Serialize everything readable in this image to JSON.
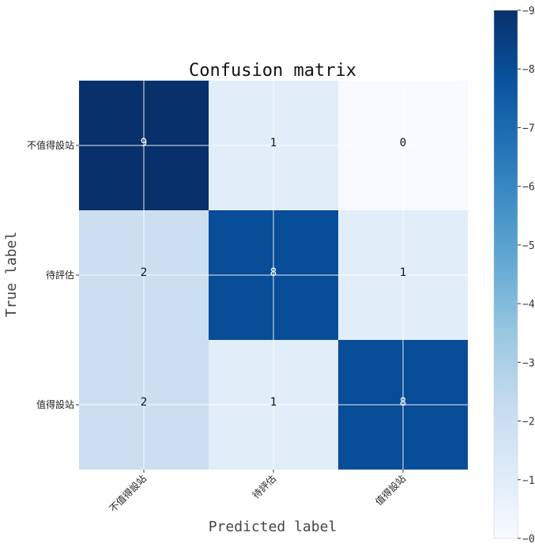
{
  "chart_data": {
    "type": "heatmap",
    "title": "Confusion matrix",
    "xlabel": "Predicted label",
    "ylabel": "True label",
    "x_categories": [
      "不值得設站",
      "待評估",
      "值得設站"
    ],
    "y_categories": [
      "不值得設站",
      "待評估",
      "值得設站"
    ],
    "values": [
      [
        9,
        1,
        0
      ],
      [
        2,
        8,
        1
      ],
      [
        2,
        1,
        8
      ]
    ],
    "colormap": "Blues",
    "vmin": 0,
    "vmax": 9,
    "colorbar_ticks": [
      0,
      1,
      2,
      3,
      4,
      5,
      6,
      7,
      8,
      9
    ],
    "grid": true
  }
}
